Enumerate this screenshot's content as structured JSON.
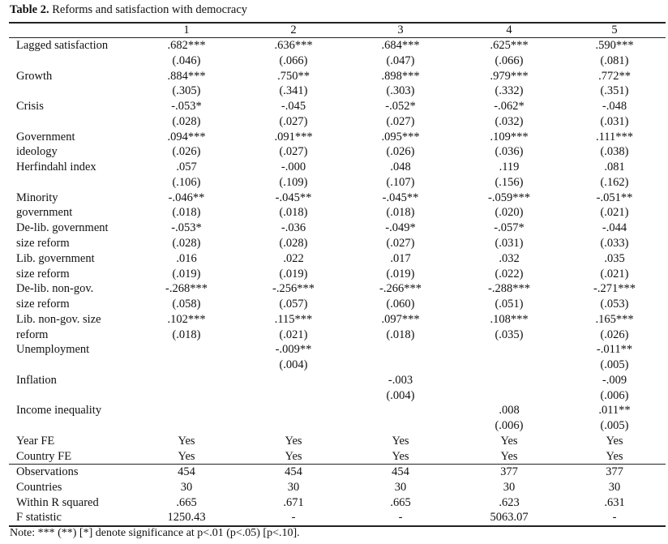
{
  "title": {
    "label": "Table 2.",
    "text": "Reforms and satisfaction with democracy"
  },
  "columns": [
    "1",
    "2",
    "3",
    "4",
    "5"
  ],
  "rows": [
    [
      "Lagged satisfaction",
      ".682***",
      ".636***",
      ".684***",
      ".625***",
      ".590***"
    ],
    [
      "",
      "(.046)",
      "(.066)",
      "(.047)",
      "(.066)",
      "(.081)"
    ],
    [
      "Growth",
      ".884***",
      ".750**",
      ".898***",
      ".979***",
      ".772**"
    ],
    [
      "",
      "(.305)",
      "(.341)",
      "(.303)",
      "(.332)",
      "(.351)"
    ],
    [
      "Crisis",
      "-.053*",
      "-.045",
      "-.052*",
      "-.062*",
      "-.048"
    ],
    [
      "",
      "(.028)",
      "(.027)",
      "(.027)",
      "(.032)",
      "(.031)"
    ],
    [
      "Government",
      ".094***",
      ".091***",
      ".095***",
      ".109***",
      ".111***"
    ],
    [
      "ideology",
      "(.026)",
      "(.027)",
      "(.026)",
      "(.036)",
      "(.038)"
    ],
    [
      "Herfindahl index",
      ".057",
      "-.000",
      ".048",
      ".119",
      ".081"
    ],
    [
      "",
      "(.106)",
      "(.109)",
      "(.107)",
      "(.156)",
      "(.162)"
    ],
    [
      "Minority",
      "-.046**",
      "-.045**",
      "-.045**",
      "-.059***",
      "-.051**"
    ],
    [
      "government",
      "(.018)",
      "(.018)",
      "(.018)",
      "(.020)",
      "(.021)"
    ],
    [
      "De-lib. government",
      "-.053*",
      "-.036",
      "-.049*",
      "-.057*",
      "-.044"
    ],
    [
      "size reform",
      "(.028)",
      "(.028)",
      "(.027)",
      "(.031)",
      "(.033)"
    ],
    [
      "Lib. government",
      ".016",
      ".022",
      ".017",
      ".032",
      ".035"
    ],
    [
      "size reform",
      "(.019)",
      "(.019)",
      "(.019)",
      "(.022)",
      "(.021)"
    ],
    [
      "De-lib. non-gov.",
      "-.268***",
      "-.256***",
      "-.266***",
      "-.288***",
      "-.271***"
    ],
    [
      "size reform",
      "(.058)",
      "(.057)",
      "(.060)",
      "(.051)",
      "(.053)"
    ],
    [
      "Lib. non-gov. size",
      ".102***",
      ".115***",
      ".097***",
      ".108***",
      ".165***"
    ],
    [
      "reform",
      "(.018)",
      "(.021)",
      "(.018)",
      "(.035)",
      "(.026)"
    ],
    [
      "Unemployment",
      "",
      "-.009**",
      "",
      "",
      "-.011**"
    ],
    [
      "",
      "",
      "(.004)",
      "",
      "",
      "(.005)"
    ],
    [
      "Inflation",
      "",
      "",
      "-.003",
      "",
      "-.009"
    ],
    [
      "",
      "",
      "",
      "(.004)",
      "",
      "(.006)"
    ],
    [
      "Income inequality",
      "",
      "",
      "",
      ".008",
      ".011**"
    ],
    [
      "",
      "",
      "",
      "",
      "(.006)",
      "(.005)"
    ],
    [
      "Year FE",
      "Yes",
      "Yes",
      "Yes",
      "Yes",
      "Yes"
    ],
    [
      "Country FE",
      "Yes",
      "Yes",
      "Yes",
      "Yes",
      "Yes"
    ]
  ],
  "stats": [
    [
      "Observations",
      "454",
      "454",
      "454",
      "377",
      "377"
    ],
    [
      "Countries",
      "30",
      "30",
      "30",
      "30",
      "30"
    ],
    [
      "Within R squared",
      ".665",
      ".671",
      ".665",
      ".623",
      ".631"
    ],
    [
      "F statistic",
      "1250.43",
      "-",
      "-",
      "5063.07",
      "-"
    ]
  ],
  "note": "Note: *** (**) [*] denote significance at p<.01 (p<.05) [p<.10]."
}
